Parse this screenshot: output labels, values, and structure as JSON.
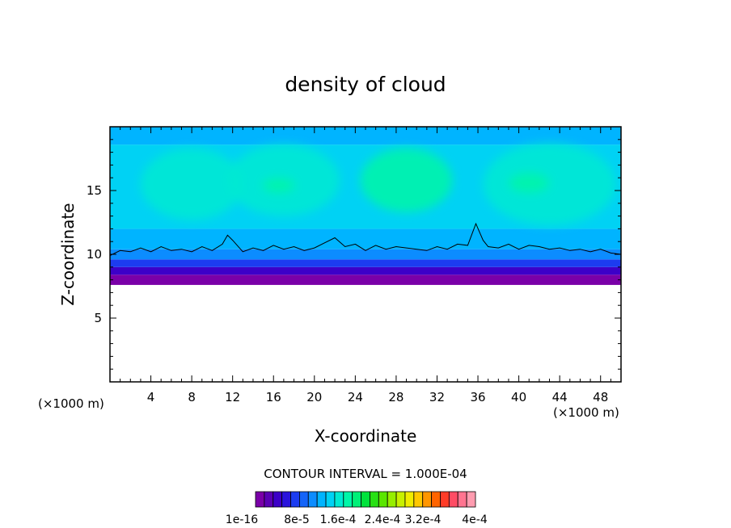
{
  "chart_data": {
    "type": "heatmap",
    "title": "density of cloud",
    "xlabel": "X-coordinate",
    "ylabel": "Z-coordinate",
    "x_unit_left": "(×1000 m)",
    "x_unit_right": "(×1000 m)",
    "xlim": [
      0,
      50
    ],
    "ylim": [
      0,
      20
    ],
    "xticks": [
      4,
      8,
      12,
      16,
      20,
      24,
      28,
      32,
      36,
      40,
      44,
      48
    ],
    "yticks": [
      5,
      10,
      15
    ],
    "contour_interval_label": "CONTOUR INTERVAL = 1.000E-04",
    "colorbar": {
      "colors": [
        "#7a00a8",
        "#5a00b4",
        "#3c00c8",
        "#2a14dc",
        "#1c3cf0",
        "#1464f8",
        "#0c8cff",
        "#00b4ff",
        "#00d2f4",
        "#00ead2",
        "#00f6a8",
        "#00f078",
        "#00e23c",
        "#28e014",
        "#5ae600",
        "#96ee00",
        "#c8f000",
        "#f0ec00",
        "#ffc800",
        "#ff9600",
        "#ff6400",
        "#ff3c28",
        "#ff4c64",
        "#ff7490",
        "#ff9cb0"
      ],
      "tick_labels": [
        "1e-16",
        "8e-5",
        "1.6e-4",
        "2.4e-4",
        "3.2e-4",
        "4e-4"
      ]
    },
    "bands": [
      {
        "z_bottom": 0.0,
        "z_top": 7.6,
        "color": "#ffffff"
      },
      {
        "z_bottom": 7.6,
        "z_top": 8.4,
        "color": "#7a00a8"
      },
      {
        "z_bottom": 8.4,
        "z_top": 9.0,
        "color": "#3c00c8"
      },
      {
        "z_bottom": 9.0,
        "z_top": 9.6,
        "color": "#1c3cf0"
      },
      {
        "z_bottom": 9.6,
        "z_top": 10.4,
        "color": "#0c8cff"
      },
      {
        "z_bottom": 10.4,
        "z_top": 12.0,
        "color": "#00b4ff"
      },
      {
        "z_bottom": 12.0,
        "z_top": 18.6,
        "color": "#00d2f4"
      },
      {
        "z_bottom": 18.6,
        "z_top": 20.0,
        "color": "#00b4ff"
      }
    ],
    "bright_regions": [
      {
        "x_center": 8.0,
        "z_center": 15.5,
        "x_radius": 5.0,
        "z_radius": 2.8,
        "color": "#00ead2"
      },
      {
        "x_center": 17.0,
        "z_center": 15.8,
        "x_radius": 5.5,
        "z_radius": 2.8,
        "color": "#00ead2"
      },
      {
        "x_center": 29.0,
        "z_center": 15.8,
        "x_radius": 4.5,
        "z_radius": 2.5,
        "color": "#00f6a8"
      },
      {
        "x_center": 43.0,
        "z_center": 15.5,
        "x_radius": 6.5,
        "z_radius": 3.2,
        "color": "#00ead2"
      },
      {
        "x_center": 16.5,
        "z_center": 15.4,
        "x_radius": 1.6,
        "z_radius": 0.6,
        "color": "#00f6a8"
      },
      {
        "x_center": 41.0,
        "z_center": 15.6,
        "x_radius": 2.0,
        "z_radius": 0.8,
        "color": "#00f6a8"
      }
    ],
    "contour_line": {
      "x": [
        0,
        1,
        2,
        3,
        4,
        5,
        6,
        7,
        8,
        9,
        10,
        11,
        11.5,
        12,
        13,
        14,
        15,
        16,
        17,
        18,
        19,
        20,
        21,
        22,
        23,
        24,
        25,
        26,
        27,
        28,
        29,
        30,
        31,
        32,
        33,
        34,
        35,
        35.8,
        36.5,
        37,
        38,
        39,
        40,
        41,
        42,
        43,
        44,
        45,
        46,
        47,
        48,
        49,
        50
      ],
      "z": [
        9.9,
        10.3,
        10.2,
        10.5,
        10.2,
        10.6,
        10.3,
        10.4,
        10.2,
        10.6,
        10.3,
        10.8,
        11.5,
        11.1,
        10.2,
        10.5,
        10.3,
        10.7,
        10.4,
        10.6,
        10.3,
        10.5,
        10.9,
        11.3,
        10.6,
        10.8,
        10.3,
        10.7,
        10.4,
        10.6,
        10.5,
        10.4,
        10.3,
        10.6,
        10.4,
        10.8,
        10.7,
        12.4,
        11.1,
        10.6,
        10.5,
        10.8,
        10.4,
        10.7,
        10.6,
        10.4,
        10.5,
        10.3,
        10.4,
        10.2,
        10.4,
        10.1,
        10.0
      ]
    }
  }
}
